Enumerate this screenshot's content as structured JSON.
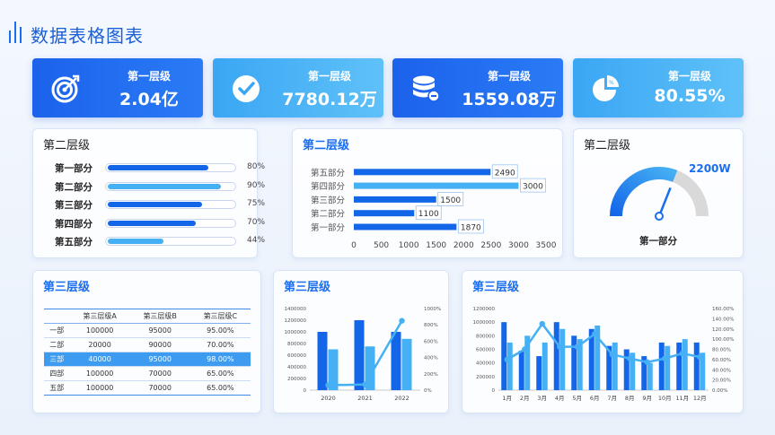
{
  "page": {
    "title": "数据表格图表"
  },
  "kpis": [
    {
      "label": "第一层级",
      "value": "2.04亿",
      "icon": "target-icon",
      "color": "#1f6cf0"
    },
    {
      "label": "第一层级",
      "value": "7780.12万",
      "icon": "check-circle-icon",
      "color": "#4db2f6"
    },
    {
      "label": "第一层级",
      "value": "1559.08万",
      "icon": "database-icon",
      "color": "#1f6cf0"
    },
    {
      "label": "第一层级",
      "value": "80.55%",
      "icon": "pie-chart-icon",
      "color": "#4db2f6"
    }
  ],
  "progress_card": {
    "title": "第二层级",
    "items": [
      {
        "label": "第一部分",
        "value": "80%",
        "pct": 0.8,
        "color": "#1466e8"
      },
      {
        "label": "第二部分",
        "value": "90%",
        "pct": 0.9,
        "color": "#45b0f3"
      },
      {
        "label": "第三部分",
        "value": "75%",
        "pct": 0.75,
        "color": "#1466e8"
      },
      {
        "label": "第四部分",
        "value": "70%",
        "pct": 0.7,
        "color": "#1466e8"
      },
      {
        "label": "第五部分",
        "value": "44%",
        "pct": 0.44,
        "color": "#45b0f3"
      }
    ]
  },
  "bar_card": {
    "title": "第二层级"
  },
  "gauge_card": {
    "title": "第二层级",
    "value_label": "2200W",
    "label": "第一部分",
    "pct": 0.62
  },
  "table_card": {
    "title": "第三层级",
    "columns": [
      "",
      "第三层级A",
      "第三层级B",
      "第三层级C"
    ],
    "rows": [
      [
        "一部",
        "100000",
        "95000",
        "95.00%"
      ],
      [
        "二部",
        "20000",
        "90000",
        "70.00%"
      ],
      [
        "三部",
        "40000",
        "95000",
        "98.00%"
      ],
      [
        "四部",
        "100000",
        "70000",
        "65.00%"
      ],
      [
        "五部",
        "100000",
        "70000",
        "65.00%"
      ]
    ],
    "highlight_row": 2
  },
  "combo_card": {
    "title": "第三层级"
  },
  "monthly_card": {
    "title": "第三层级"
  },
  "chart_data": [
    {
      "type": "bar",
      "orientation": "horizontal",
      "categories": [
        "第一部分",
        "第二部分",
        "第三部分",
        "第四部分",
        "第五部分"
      ],
      "values": [
        1870,
        1100,
        1500,
        3000,
        2490
      ],
      "xlim": [
        0,
        3500
      ],
      "xticks": [
        0,
        500,
        1000,
        1500,
        2000,
        2500,
        3000,
        3500
      ],
      "colors": [
        "#1466e8",
        "#1466e8",
        "#1466e8",
        "#45b0f3",
        "#1466e8"
      ],
      "title": ""
    },
    {
      "type": "bar",
      "categories": [
        "2020",
        "2021",
        "2022"
      ],
      "series": [
        {
          "name": "",
          "values": [
            1000000,
            1200000,
            1000000
          ],
          "color": "#1466e8"
        },
        {
          "name": "",
          "values": [
            700000,
            750000,
            880000
          ],
          "color": "#45b0f3"
        },
        {
          "name": "",
          "type": "line",
          "axis": "right",
          "values": [
            60,
            70,
            850
          ],
          "color": "#45b0f3"
        }
      ],
      "ylim": [
        0,
        1400000
      ],
      "yticks": [
        "0",
        "200000",
        "400000",
        "600000",
        "800000",
        "1000000",
        "1200000",
        "1400000"
      ],
      "y2lim": [
        0,
        1000
      ],
      "y2ticks": [
        "0%",
        "200%",
        "400%",
        "600%",
        "800%",
        "1000%"
      ],
      "title": ""
    },
    {
      "type": "bar",
      "categories": [
        "1月",
        "2月",
        "3月",
        "4月",
        "5月",
        "6月",
        "7月",
        "8月",
        "9月",
        "10月",
        "11月",
        "12月"
      ],
      "series": [
        {
          "name": "",
          "values": [
            1000000,
            580000,
            500000,
            1000000,
            800000,
            900000,
            650000,
            600000,
            500000,
            700000,
            700000,
            700000
          ],
          "color": "#1466e8"
        },
        {
          "name": "",
          "values": [
            700000,
            800000,
            700000,
            900000,
            750000,
            950000,
            700000,
            550000,
            400000,
            650000,
            750000,
            550000
          ],
          "color": "#45b0f3"
        },
        {
          "name": "",
          "type": "line",
          "axis": "right",
          "values": [
            60,
            80,
            130,
            85,
            85,
            110,
            70,
            62,
            55,
            62,
            72,
            65
          ],
          "color": "#45b0f3"
        }
      ],
      "ylim": [
        0,
        1200000
      ],
      "yticks": [
        "0",
        "200000",
        "400000",
        "600000",
        "800000",
        "1000000",
        "1200000"
      ],
      "y2lim": [
        0,
        160
      ],
      "y2ticks": [
        "0.00%",
        "20.00%",
        "40.00%",
        "60.00%",
        "80.00%",
        "100.00%",
        "120.00%",
        "140.00%",
        "160.00%"
      ],
      "title": ""
    }
  ]
}
